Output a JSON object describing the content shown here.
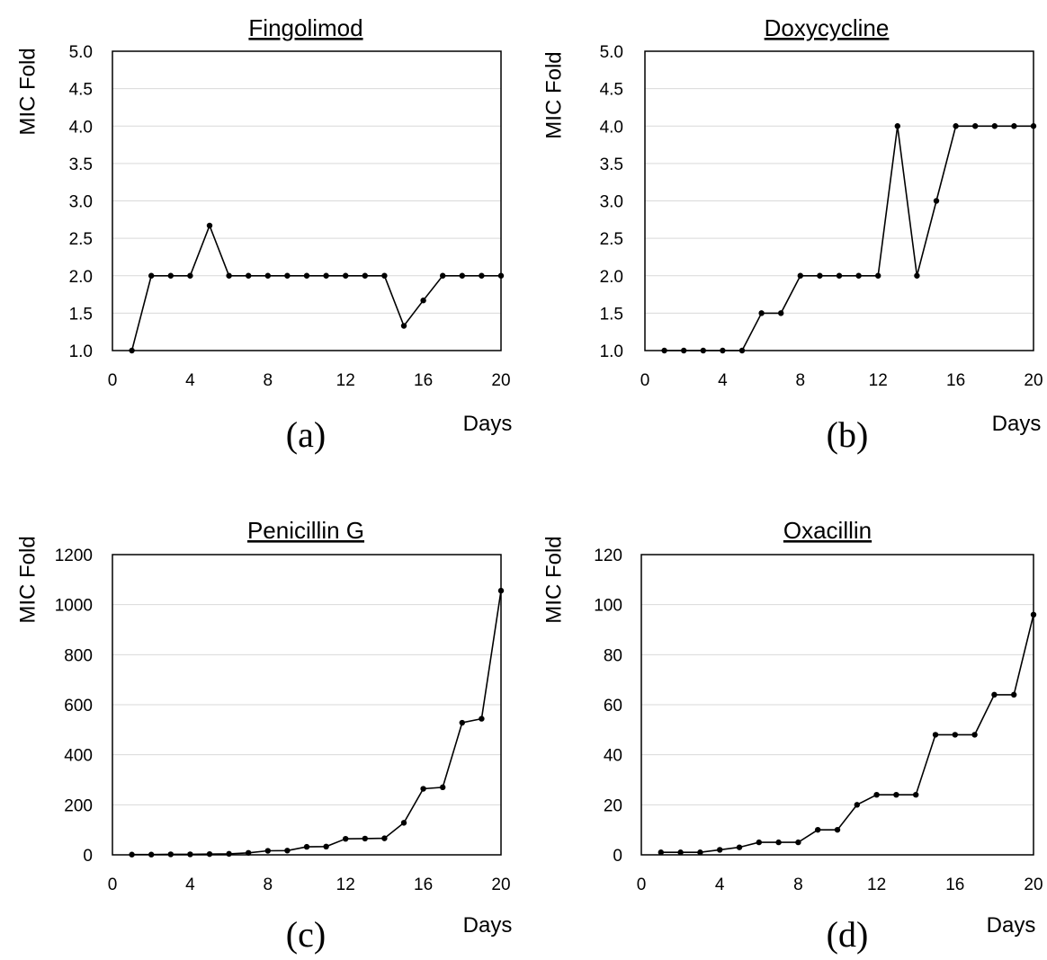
{
  "figure": {
    "background": "#ffffff",
    "line_color": "#000000",
    "grid_color": "#d9d9d9"
  },
  "chart_data": [
    {
      "type": "line",
      "panel_label": "(a)",
      "title": "Fingolimod",
      "xlabel": "Days",
      "ylabel": "MIC Fold",
      "xlim": [
        0,
        20
      ],
      "ylim": [
        1.0,
        5.0
      ],
      "x_ticks": [
        "0",
        "4",
        "8",
        "12",
        "16",
        "20"
      ],
      "y_ticks": [
        "1.0",
        "1.5",
        "2.0",
        "2.5",
        "3.0",
        "3.5",
        "4.0",
        "4.5",
        "5.0"
      ],
      "grid": "horizontal",
      "x": [
        1,
        2,
        3,
        4,
        5,
        6,
        7,
        8,
        9,
        10,
        11,
        12,
        13,
        14,
        15,
        16,
        17,
        18,
        19,
        20
      ],
      "values": [
        1.0,
        2.0,
        2.0,
        2.0,
        2.67,
        2.0,
        2.0,
        2.0,
        2.0,
        2.0,
        2.0,
        2.0,
        2.0,
        2.0,
        1.33,
        1.67,
        2.0,
        2.0,
        2.0,
        2.0
      ]
    },
    {
      "type": "line",
      "panel_label": "(b)",
      "title": "Doxycycline",
      "xlabel": "Days",
      "ylabel": "MIC Fold",
      "xlim": [
        0,
        20
      ],
      "ylim": [
        1.0,
        5.0
      ],
      "x_ticks": [
        "0",
        "4",
        "8",
        "12",
        "16",
        "20"
      ],
      "y_ticks": [
        "1.0",
        "1.5",
        "2.0",
        "2.5",
        "3.0",
        "3.5",
        "4.0",
        "4.5",
        "5.0"
      ],
      "grid": "horizontal",
      "x": [
        1,
        2,
        3,
        4,
        5,
        6,
        7,
        8,
        9,
        10,
        11,
        12,
        13,
        14,
        15,
        16,
        17,
        18,
        19,
        20
      ],
      "values": [
        1.0,
        1.0,
        1.0,
        1.0,
        1.0,
        1.5,
        1.5,
        2.0,
        2.0,
        2.0,
        2.0,
        2.0,
        4.0,
        2.0,
        3.0,
        4.0,
        4.0,
        4.0,
        4.0,
        4.0
      ]
    },
    {
      "type": "line",
      "panel_label": "(c)",
      "title": "Penicillin G",
      "xlabel": "Days",
      "ylabel": "MIC Fold",
      "xlim": [
        0,
        20
      ],
      "ylim": [
        0,
        1200
      ],
      "x_ticks": [
        "0",
        "4",
        "8",
        "12",
        "16",
        "20"
      ],
      "y_ticks": [
        "0",
        "200",
        "400",
        "600",
        "800",
        "1000",
        "1200"
      ],
      "grid": "horizontal",
      "x": [
        1,
        2,
        3,
        4,
        5,
        6,
        7,
        8,
        9,
        10,
        11,
        12,
        13,
        14,
        15,
        16,
        17,
        18,
        19,
        20
      ],
      "values": [
        1,
        1,
        2,
        2,
        3,
        4,
        8,
        16,
        17,
        32,
        33,
        64,
        65,
        66,
        128,
        264,
        270,
        528,
        544,
        1056
      ]
    },
    {
      "type": "line",
      "panel_label": "(d)",
      "title": "Oxacillin",
      "xlabel": "Days",
      "ylabel": "MIC Fold",
      "xlim": [
        0,
        20
      ],
      "ylim": [
        0,
        120
      ],
      "x_ticks": [
        "0",
        "4",
        "8",
        "12",
        "16",
        "20"
      ],
      "y_ticks": [
        "0",
        "20",
        "40",
        "60",
        "80",
        "100",
        "120"
      ],
      "grid": "horizontal",
      "x": [
        1,
        2,
        3,
        4,
        5,
        6,
        7,
        8,
        9,
        10,
        11,
        12,
        13,
        14,
        15,
        16,
        17,
        18,
        19,
        20
      ],
      "values": [
        1,
        1,
        1,
        2,
        3,
        5,
        5,
        5,
        10,
        10,
        20,
        24,
        24,
        24,
        48,
        48,
        48,
        64,
        64,
        96
      ]
    }
  ]
}
